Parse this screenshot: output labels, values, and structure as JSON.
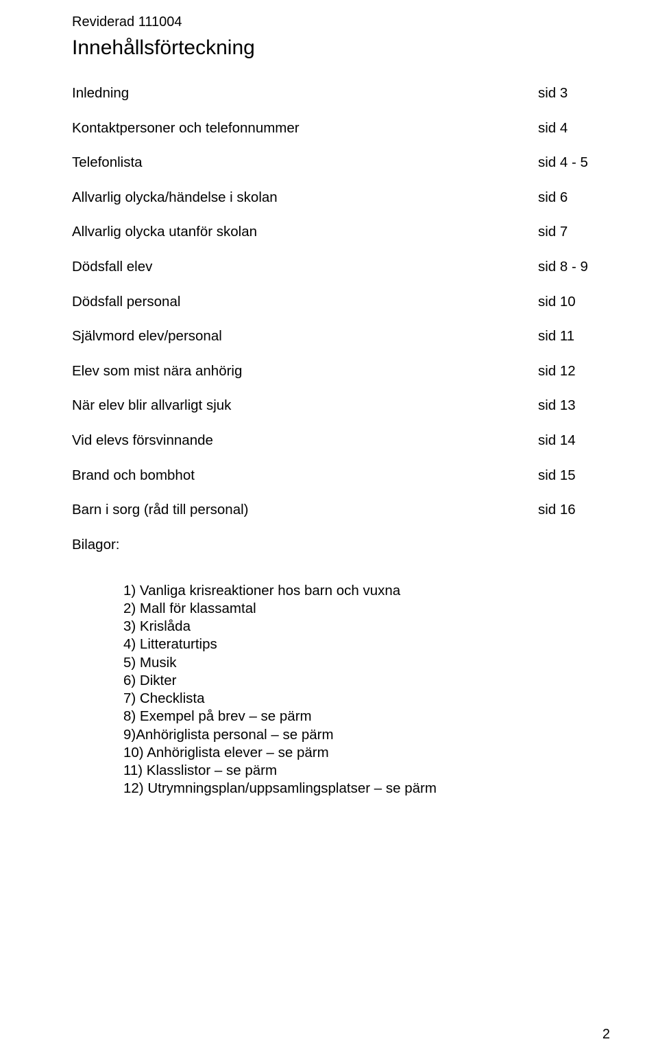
{
  "header": "Reviderad 111004",
  "title": "Innehållsförteckning",
  "toc": [
    {
      "label": "Inledning",
      "page": "sid 3"
    },
    {
      "label": "Kontaktpersoner och telefonnummer",
      "page": "sid 4"
    },
    {
      "label": "Telefonlista",
      "page": "sid 4 - 5"
    },
    {
      "label": "Allvarlig olycka/händelse i skolan",
      "page": "sid 6"
    },
    {
      "label": "Allvarlig olycka utanför skolan",
      "page": "sid 7"
    },
    {
      "label": "Dödsfall elev",
      "page": "sid 8 - 9"
    },
    {
      "label": "Dödsfall personal",
      "page": "sid 10"
    },
    {
      "label": "Självmord elev/personal",
      "page": "sid 11"
    },
    {
      "label": "Elev som mist nära anhörig",
      "page": "sid 12"
    },
    {
      "label": "När elev blir allvarligt sjuk",
      "page": "sid 13"
    },
    {
      "label": "Vid elevs försvinnande",
      "page": "sid 14"
    },
    {
      "label": "Brand och bombhot",
      "page": "sid 15"
    },
    {
      "label": "Barn i sorg  (råd till personal)",
      "page": "sid 16"
    }
  ],
  "bilagor_label": "Bilagor:",
  "attachments": [
    "1) Vanliga krisreaktioner hos barn och vuxna",
    "2) Mall för klassamtal",
    "3) Krislåda",
    "4) Litteraturtips",
    "5) Musik",
    "6) Dikter",
    " 7) Checklista",
    "8) Exempel på brev – se pärm",
    "9)Anhöriglista personal – se pärm",
    "10) Anhöriglista elever – se pärm",
    "11) Klasslistor – se pärm",
    "12) Utrymningsplan/uppsamlingsplatser – se pärm"
  ],
  "page_number": "2"
}
